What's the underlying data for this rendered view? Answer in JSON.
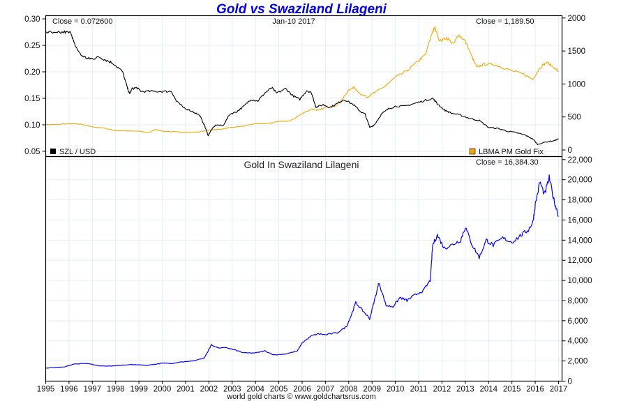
{
  "title": "Gold vs Swaziland Lilageni",
  "footer": "world gold charts © www.goldchartsrus.com",
  "colors": {
    "szl": "#000000",
    "gold": "#f5a800",
    "gold_szl": "#0000ff",
    "title": "#0000ee",
    "grid": "#e4eef8"
  },
  "chart_data": [
    {
      "type": "line",
      "panel": "upper",
      "date_label": "Jan-10  2017",
      "close_left": "Close = 0.072600",
      "close_right": "Close = 1,189.50",
      "x_ticks": [
        "1995",
        "1996",
        "1997",
        "1998",
        "1999",
        "2000",
        "2001",
        "2002",
        "2003",
        "2004",
        "2005",
        "2006",
        "2007",
        "2008",
        "2009",
        "2010",
        "2011",
        "2012",
        "2013",
        "2014",
        "2015",
        "2016",
        "2017"
      ],
      "y_left_ticks": [
        "0.30",
        "0.25",
        "0.20",
        "0.15",
        "0.10",
        "0.05"
      ],
      "y_left_values": [
        0.3,
        0.25,
        0.2,
        0.15,
        0.1,
        0.05
      ],
      "y_left_range": [
        0.04,
        0.306
      ],
      "y_right_ticks": [
        "2000",
        "1500",
        "1000",
        "500",
        "0"
      ],
      "y_right_values": [
        2000,
        1500,
        1000,
        500,
        0
      ],
      "y_right_range": [
        -100,
        2035
      ],
      "grid": true,
      "series": [
        {
          "name": "SZL / USD",
          "axis": "left",
          "legend": "bottom-left",
          "x": [
            1995.0,
            1995.4,
            1995.8,
            1996.1,
            1996.2,
            1996.5,
            1996.8,
            1997.0,
            1997.3,
            1997.6,
            1997.9,
            1998.3,
            1998.5,
            1998.6,
            1998.7,
            1998.9,
            1999.1,
            1999.5,
            2000.0,
            2000.4,
            2000.6,
            2000.9,
            2001.3,
            2001.6,
            2001.8,
            2001.97,
            2002.1,
            2002.3,
            2002.6,
            2002.9,
            2003.2,
            2003.5,
            2003.8,
            2004.1,
            2004.4,
            2004.7,
            2004.9,
            2005.3,
            2005.6,
            2005.9,
            2006.2,
            2006.4,
            2006.6,
            2006.9,
            2007.2,
            2007.5,
            2007.8,
            2008.2,
            2008.5,
            2008.7,
            2008.9,
            2009.1,
            2009.4,
            2009.7,
            2010.0,
            2010.4,
            2010.8,
            2011.2,
            2011.6,
            2011.8,
            2012.1,
            2012.4,
            2012.8,
            2013.2,
            2013.6,
            2014.0,
            2014.4,
            2014.8,
            2015.2,
            2015.6,
            2015.9,
            2016.1,
            2016.4,
            2016.8,
            2017.0
          ],
          "values": [
            0.276,
            0.272,
            0.275,
            0.273,
            0.255,
            0.232,
            0.225,
            0.225,
            0.228,
            0.222,
            0.216,
            0.2,
            0.17,
            0.158,
            0.168,
            0.17,
            0.163,
            0.163,
            0.163,
            0.163,
            0.145,
            0.133,
            0.125,
            0.118,
            0.1,
            0.08,
            0.09,
            0.1,
            0.098,
            0.12,
            0.125,
            0.135,
            0.148,
            0.145,
            0.16,
            0.17,
            0.16,
            0.168,
            0.155,
            0.148,
            0.165,
            0.16,
            0.133,
            0.138,
            0.133,
            0.14,
            0.148,
            0.138,
            0.125,
            0.12,
            0.095,
            0.1,
            0.12,
            0.13,
            0.135,
            0.135,
            0.14,
            0.145,
            0.15,
            0.14,
            0.128,
            0.122,
            0.118,
            0.112,
            0.108,
            0.095,
            0.093,
            0.088,
            0.085,
            0.08,
            0.073,
            0.063,
            0.067,
            0.07,
            0.073
          ]
        },
        {
          "name": "LBMA PM Gold Fix",
          "axis": "right",
          "legend": "bottom-right",
          "x": [
            1995.0,
            1995.5,
            1996.0,
            1996.5,
            1997.0,
            1997.5,
            1998.0,
            1998.5,
            1999.0,
            1999.4,
            1999.7,
            2000.0,
            2000.5,
            2001.0,
            2001.5,
            2002.0,
            2002.5,
            2003.0,
            2003.5,
            2004.0,
            2004.5,
            2005.0,
            2005.5,
            2006.0,
            2006.4,
            2006.7,
            2007.0,
            2007.5,
            2008.0,
            2008.2,
            2008.5,
            2008.8,
            2009.0,
            2009.5,
            2010.0,
            2010.5,
            2011.0,
            2011.3,
            2011.6,
            2011.7,
            2011.9,
            2012.2,
            2012.5,
            2012.7,
            2013.0,
            2013.3,
            2013.5,
            2013.8,
            2014.2,
            2014.6,
            2015.0,
            2015.5,
            2015.9,
            2016.2,
            2016.5,
            2016.8,
            2017.0
          ],
          "values": [
            385,
            385,
            400,
            390,
            350,
            330,
            295,
            290,
            285,
            260,
            310,
            285,
            275,
            265,
            270,
            300,
            315,
            345,
            360,
            400,
            400,
            430,
            440,
            550,
            620,
            600,
            640,
            680,
            900,
            950,
            850,
            800,
            850,
            950,
            1100,
            1200,
            1350,
            1450,
            1800,
            1850,
            1650,
            1700,
            1600,
            1750,
            1650,
            1400,
            1250,
            1300,
            1300,
            1250,
            1200,
            1150,
            1070,
            1250,
            1330,
            1250,
            1190
          ]
        }
      ]
    },
    {
      "type": "line",
      "panel": "lower",
      "title": "Gold In Swaziland Lilageni",
      "close": "Close = 16,384.30",
      "y_ticks": [
        "22,000",
        "20,000",
        "18,000",
        "16,000",
        "14,000",
        "12,000",
        "10,000",
        "8,000",
        "6,000",
        "4,000",
        "2,000",
        "0"
      ],
      "y_values": [
        22000,
        20000,
        18000,
        16000,
        14000,
        12000,
        10000,
        8000,
        6000,
        4000,
        2000,
        0
      ],
      "y_range": [
        0,
        22300
      ],
      "grid": true,
      "series": [
        {
          "name": "Gold In Swaziland Lilageni",
          "x": [
            1995.0,
            1995.8,
            1996.2,
            1996.8,
            1997.3,
            1997.8,
            1998.3,
            1998.8,
            1999.3,
            1999.8,
            2000.0,
            2000.4,
            2000.8,
            2001.3,
            2001.8,
            2001.97,
            2002.1,
            2002.4,
            2002.8,
            2003.1,
            2003.5,
            2004.0,
            2004.4,
            2004.8,
            2005.3,
            2005.8,
            2006.0,
            2006.4,
            2006.7,
            2007.0,
            2007.5,
            2007.9,
            2008.1,
            2008.3,
            2008.6,
            2008.9,
            2009.1,
            2009.3,
            2009.6,
            2009.9,
            2010.2,
            2010.5,
            2010.8,
            2011.2,
            2011.5,
            2011.6,
            2011.8,
            2012.1,
            2012.4,
            2012.8,
            2013.0,
            2013.3,
            2013.6,
            2013.9,
            2014.2,
            2014.6,
            2015.0,
            2015.4,
            2015.7,
            2015.9,
            2016.0,
            2016.2,
            2016.4,
            2016.6,
            2016.8,
            2017.0
          ],
          "values": [
            1300,
            1400,
            1700,
            1750,
            1500,
            1500,
            1600,
            1650,
            1550,
            1700,
            1800,
            1750,
            1900,
            2000,
            2300,
            3000,
            3600,
            3300,
            3300,
            3100,
            2800,
            2800,
            3000,
            2600,
            2700,
            3000,
            3800,
            4500,
            4700,
            4600,
            4800,
            5400,
            6500,
            7800,
            7000,
            6200,
            8000,
            9800,
            7500,
            7400,
            8300,
            8000,
            8500,
            9000,
            10000,
            13500,
            14500,
            13200,
            13500,
            14000,
            15300,
            13500,
            12300,
            14000,
            13500,
            14200,
            13800,
            14500,
            15000,
            15800,
            17500,
            19800,
            18500,
            20200,
            18000,
            16400
          ]
        }
      ]
    }
  ]
}
